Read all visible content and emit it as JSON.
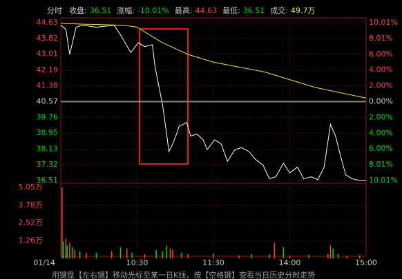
{
  "chart_data": {
    "type": "line",
    "header": [
      {
        "label": "分时"
      },
      {
        "label": "收盘:",
        "value": "36.51",
        "color": "#00d800"
      },
      {
        "label": "涨幅:",
        "value": "-10.01%",
        "color": "#00d800"
      },
      {
        "label": "最高:",
        "value": "44.63",
        "color": "#ff4040"
      },
      {
        "label": "最低:",
        "value": "36.51",
        "color": "#00d800"
      },
      {
        "label": "成交:",
        "value": "49.7万",
        "color": "#e8e860"
      }
    ],
    "xlim": [
      0,
      240
    ],
    "xticks": [
      {
        "value": 0,
        "label": "01/14"
      },
      {
        "value": 60,
        "label": "10:30"
      },
      {
        "value": 120,
        "label": "11:30"
      },
      {
        "value": 180,
        "label": "14:00"
      },
      {
        "value": 240,
        "label": "15:00"
      }
    ],
    "ylim": [
      36.51,
      44.63
    ],
    "yticks": [
      44.63,
      43.82,
      43.01,
      42.19,
      41.38,
      40.57,
      39.76,
      38.95,
      38.13,
      37.32,
      36.51
    ],
    "y2lim": [
      -10.01,
      10.01
    ],
    "y2ticks": [
      {
        "value": 10.01,
        "label": "10.01%"
      },
      {
        "value": 8.01,
        "label": "8.01%"
      },
      {
        "value": 6,
        "label": "6.00%"
      },
      {
        "value": 4,
        "label": "4.00%"
      },
      {
        "value": 2,
        "label": "2.00%"
      },
      {
        "value": 0,
        "label": "0.00%"
      },
      {
        "value": -2,
        "label": "2.00%"
      },
      {
        "value": -4,
        "label": "4.00%"
      },
      {
        "value": -6,
        "label": "6.00%"
      },
      {
        "value": -8.01,
        "label": "8.01%"
      },
      {
        "value": -10.01,
        "label": "10.01%"
      }
    ],
    "up_color": "#ff4040",
    "down_color": "#00d800",
    "flat_color": "#c8c8c8",
    "grid": true,
    "series": [
      {
        "color": "#ffffff",
        "x": [
          0,
          4,
          7,
          12,
          17,
          28,
          42,
          47,
          55,
          61,
          66,
          72,
          74,
          77,
          80,
          83,
          85,
          88,
          91,
          93,
          99,
          102,
          107,
          112,
          115,
          121,
          126,
          131,
          137,
          142,
          148,
          153,
          159,
          164,
          169,
          175,
          180,
          186,
          191,
          197,
          202,
          207,
          212,
          216,
          219,
          224,
          229,
          235,
          240
        ],
        "values": [
          44.5,
          44.3,
          43.0,
          44.4,
          44.5,
          44.4,
          44.5,
          44.0,
          43.1,
          43.6,
          43.4,
          43.5,
          42.4,
          41.4,
          40.4,
          39.0,
          38.0,
          38.4,
          38.9,
          39.3,
          39.5,
          38.8,
          38.9,
          38.6,
          38.1,
          38.6,
          38.4,
          37.5,
          38.1,
          38.2,
          38.0,
          37.6,
          37.3,
          36.6,
          36.7,
          37.4,
          36.9,
          37.2,
          36.6,
          36.7,
          36.55,
          37.2,
          39.4,
          38.8,
          38.0,
          36.8,
          36.6,
          36.51,
          36.51
        ]
      },
      {
        "color": "#e8e840",
        "x": [
          0,
          20,
          50,
          60,
          70,
          80,
          100,
          120,
          160,
          180,
          200,
          240
        ],
        "values": [
          44.6,
          44.55,
          44.5,
          44.4,
          44.0,
          43.6,
          43.0,
          42.6,
          42.1,
          41.7,
          41.3,
          40.75
        ]
      }
    ],
    "volume": {
      "ylim": [
        0,
        50500
      ],
      "yticks": [
        {
          "value": 50500,
          "label": "5.05万"
        },
        {
          "value": 37800,
          "label": "3.78万"
        },
        {
          "value": 25200,
          "label": "2.52万"
        },
        {
          "value": 12600,
          "label": "1.26万"
        }
      ],
      "x": [
        1,
        2,
        4,
        5,
        7,
        9,
        11,
        15,
        20,
        28,
        40,
        47,
        52,
        56,
        66,
        75,
        80,
        83,
        86,
        88,
        95,
        100,
        120,
        140,
        150,
        164,
        168,
        175,
        180,
        195,
        210,
        212,
        214,
        218,
        225,
        235
      ],
      "values": [
        50500,
        12000,
        14000,
        9000,
        11000,
        8000,
        6000,
        5000,
        4000,
        4000,
        5000,
        8000,
        7000,
        4000,
        3000,
        6000,
        5000,
        9000,
        7000,
        6000,
        4000,
        3000,
        3500,
        2000,
        3000,
        2500,
        11000,
        8000,
        2000,
        2500,
        3000,
        9500,
        7000,
        3000,
        2000,
        2000
      ],
      "colors": [
        "#ff4040",
        "#00d800",
        "#ff4040",
        "#00d800",
        "#ff4040",
        "#00d800",
        "#ff4040",
        "#00d800",
        "#ff4040",
        "#00d800",
        "#ff4040",
        "#00d800",
        "#ff4040",
        "#00d800",
        "#ff4040",
        "#00d800",
        "#00d800",
        "#00d800",
        "#ff4040",
        "#ff4040",
        "#00d800",
        "#ff4040",
        "#00d800",
        "#ff4040",
        "#00d800",
        "#00d800",
        "#ff4040",
        "#00d800",
        "#ff4040",
        "#00d800",
        "#ff4040",
        "#ff4040",
        "#00d800",
        "#00d800",
        "#ff4040",
        "#00d800"
      ]
    },
    "footer": "用键盘【左右键】移动光标至某一日K线，按【空格键】查看当日历史分时走势"
  }
}
